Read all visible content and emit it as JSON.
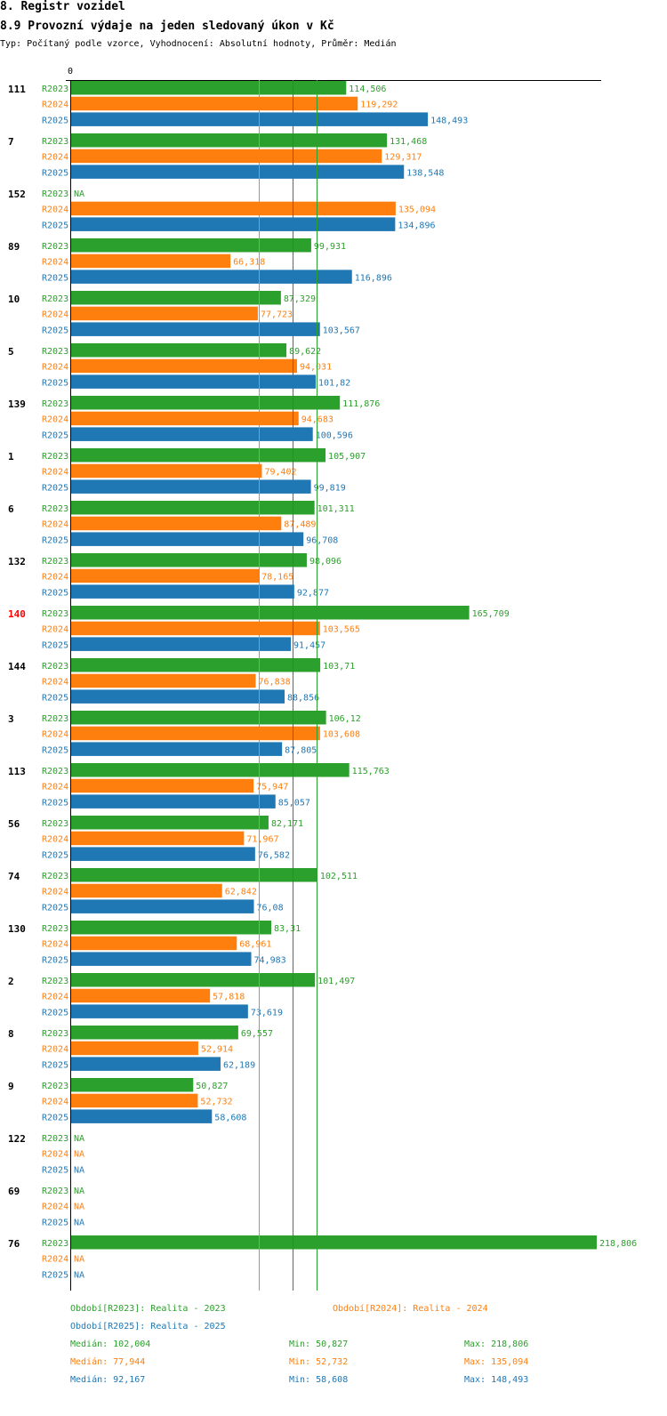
{
  "header": {
    "title": "8. Registr vozidel",
    "subtitle": "8.9 Provozní výdaje na jeden sledovaný úkon v Kč",
    "meta": "Typ: Počítaný podle vzorce, Vyhodnocení: Absolutní hodnoty, Průměr: Medián"
  },
  "colors": {
    "R2023": "#2ca02c",
    "R2024": "#ff7f0e",
    "R2025": "#1f77b4",
    "highlight": "#ff0000",
    "axis": "#000000"
  },
  "chart_data": {
    "type": "bar",
    "orientation": "horizontal",
    "xlim": [
      0,
      218806
    ],
    "x_axis_tick": "0",
    "series_names": [
      "R2023",
      "R2024",
      "R2025"
    ],
    "groups": [
      {
        "label": "111",
        "highlight": false,
        "values": [
          114506,
          119292,
          148493
        ],
        "labels": [
          "114,506",
          "119,292",
          "148,493"
        ]
      },
      {
        "label": "7",
        "highlight": false,
        "values": [
          131468,
          129317,
          138548
        ],
        "labels": [
          "131,468",
          "129,317",
          "138,548"
        ]
      },
      {
        "label": "152",
        "highlight": false,
        "values": [
          null,
          135094,
          134896
        ],
        "labels": [
          "NA",
          "135,094",
          "134,896"
        ]
      },
      {
        "label": "89",
        "highlight": false,
        "values": [
          99931,
          66318,
          116896
        ],
        "labels": [
          "99,931",
          "66,318",
          "116,896"
        ]
      },
      {
        "label": "10",
        "highlight": false,
        "values": [
          87329,
          77723,
          103567
        ],
        "labels": [
          "87,329",
          "77,723",
          "103,567"
        ]
      },
      {
        "label": "5",
        "highlight": false,
        "values": [
          89622,
          94031,
          101820
        ],
        "labels": [
          "89,622",
          "94,031",
          "101,82"
        ]
      },
      {
        "label": "139",
        "highlight": false,
        "values": [
          111876,
          94683,
          100596
        ],
        "labels": [
          "111,876",
          "94,683",
          "100,596"
        ]
      },
      {
        "label": "1",
        "highlight": false,
        "values": [
          105907,
          79402,
          99819
        ],
        "labels": [
          "105,907",
          "79,402",
          "99,819"
        ]
      },
      {
        "label": "6",
        "highlight": false,
        "values": [
          101311,
          87489,
          96708
        ],
        "labels": [
          "101,311",
          "87,489",
          "96,708"
        ]
      },
      {
        "label": "132",
        "highlight": false,
        "values": [
          98096,
          78165,
          92877
        ],
        "labels": [
          "98,096",
          "78,165",
          "92,877"
        ]
      },
      {
        "label": "140",
        "highlight": true,
        "values": [
          165709,
          103565,
          91457
        ],
        "labels": [
          "165,709",
          "103,565",
          "91,457"
        ]
      },
      {
        "label": "144",
        "highlight": false,
        "values": [
          103710,
          76838,
          88856
        ],
        "labels": [
          "103,71",
          "76,838",
          "88,856"
        ]
      },
      {
        "label": "3",
        "highlight": false,
        "values": [
          106120,
          103608,
          87805
        ],
        "labels": [
          "106,12",
          "103,608",
          "87,805"
        ]
      },
      {
        "label": "113",
        "highlight": false,
        "values": [
          115763,
          75947,
          85057
        ],
        "labels": [
          "115,763",
          "75,947",
          "85,057"
        ]
      },
      {
        "label": "56",
        "highlight": false,
        "values": [
          82171,
          71967,
          76582
        ],
        "labels": [
          "82,171",
          "71,967",
          "76,582"
        ]
      },
      {
        "label": "74",
        "highlight": false,
        "values": [
          102511,
          62842,
          76080
        ],
        "labels": [
          "102,511",
          "62,842",
          "76,08"
        ]
      },
      {
        "label": "130",
        "highlight": false,
        "values": [
          83310,
          68961,
          74983
        ],
        "labels": [
          "83,31",
          "68,961",
          "74,983"
        ]
      },
      {
        "label": "2",
        "highlight": false,
        "values": [
          101497,
          57818,
          73619
        ],
        "labels": [
          "101,497",
          "57,818",
          "73,619"
        ]
      },
      {
        "label": "8",
        "highlight": false,
        "values": [
          69557,
          52914,
          62189
        ],
        "labels": [
          "69,557",
          "52,914",
          "62,189"
        ]
      },
      {
        "label": "9",
        "highlight": false,
        "values": [
          50827,
          52732,
          58608
        ],
        "labels": [
          "50,827",
          "52,732",
          "58,608"
        ]
      },
      {
        "label": "122",
        "highlight": false,
        "values": [
          null,
          null,
          null
        ],
        "labels": [
          "NA",
          "NA",
          "NA"
        ]
      },
      {
        "label": "69",
        "highlight": false,
        "values": [
          null,
          null,
          null
        ],
        "labels": [
          "NA",
          "NA",
          "NA"
        ]
      },
      {
        "label": "76",
        "highlight": false,
        "values": [
          218806,
          null,
          null
        ],
        "labels": [
          "218,806",
          "NA",
          "NA"
        ]
      }
    ],
    "medians": [
      102004,
      77944,
      92167
    ]
  },
  "legend": {
    "r2023": "Období[R2023]: Realita - 2023",
    "r2024": "Období[R2024]: Realita - 2024",
    "r2025": "Období[R2025]: Realita - 2025",
    "stats": [
      {
        "median": "Medián: 102,004",
        "min": "Min: 50,827",
        "max": "Max: 218,806"
      },
      {
        "median": "Medián: 77,944",
        "min": "Min: 52,732",
        "max": "Max: 135,094"
      },
      {
        "median": "Medián: 92,167",
        "min": "Min: 58,608",
        "max": "Max: 148,493"
      }
    ]
  }
}
